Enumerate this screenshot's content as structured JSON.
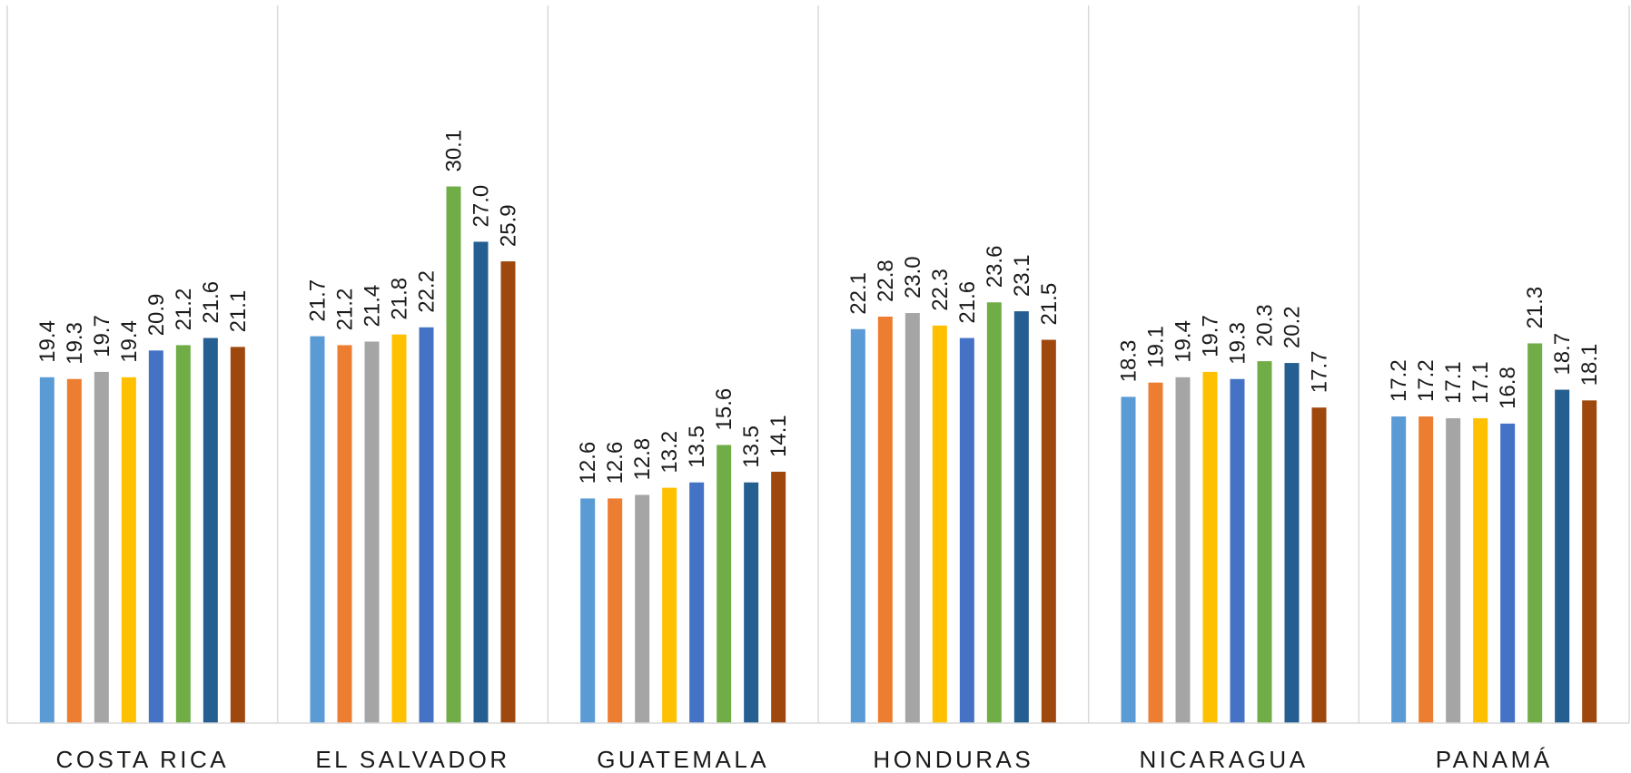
{
  "chart_data": {
    "type": "bar",
    "categories": [
      "COSTA RICA",
      "EL SALVADOR",
      "GUATEMALA",
      "HONDURAS",
      "NICARAGUA",
      "PANAMÁ"
    ],
    "series": [
      {
        "color": "#5B9BD5",
        "values": [
          19.4,
          21.7,
          12.6,
          22.1,
          18.3,
          17.2
        ]
      },
      {
        "color": "#ED7D31",
        "values": [
          19.3,
          21.2,
          12.6,
          22.8,
          19.1,
          17.2
        ]
      },
      {
        "color": "#A5A5A5",
        "values": [
          19.7,
          21.4,
          12.8,
          23.0,
          19.4,
          17.1
        ]
      },
      {
        "color": "#FFC000",
        "values": [
          19.4,
          21.8,
          13.2,
          22.3,
          19.7,
          17.1
        ]
      },
      {
        "color": "#4472C4",
        "values": [
          20.9,
          22.2,
          13.5,
          21.6,
          19.3,
          16.8
        ]
      },
      {
        "color": "#70AD47",
        "values": [
          21.2,
          30.1,
          15.6,
          23.6,
          20.3,
          21.3
        ]
      },
      {
        "color": "#255E91",
        "values": [
          21.6,
          27.0,
          13.5,
          23.1,
          20.2,
          18.7
        ]
      },
      {
        "color": "#9E480E",
        "values": [
          21.1,
          25.9,
          14.1,
          21.5,
          17.7,
          18.1
        ]
      }
    ],
    "data_labels": true,
    "label_decimals": 1,
    "ylim": [
      0,
      35
    ],
    "grid": false,
    "category_separators": true,
    "legend": "none"
  }
}
